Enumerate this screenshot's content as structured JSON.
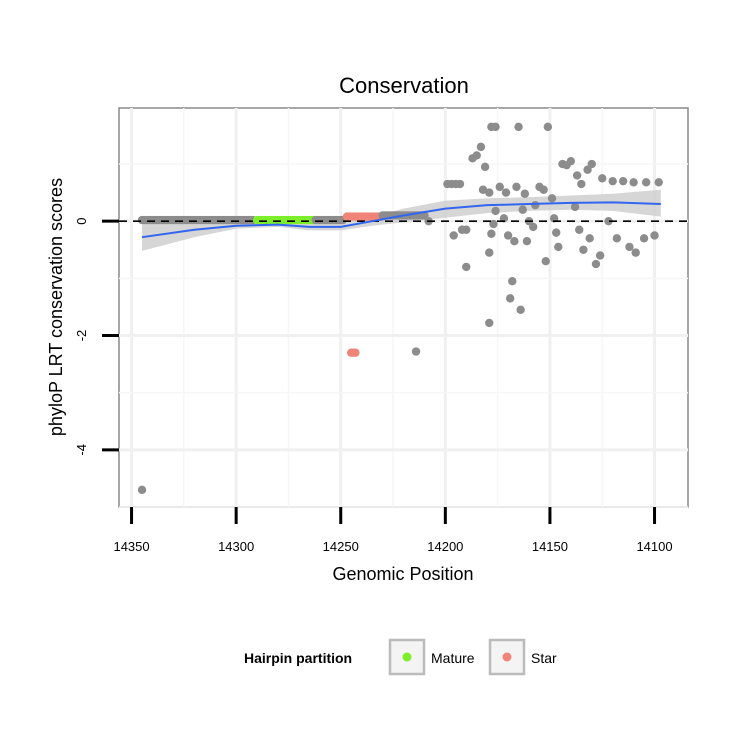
{
  "chart_data": {
    "type": "scatter",
    "title": "Conservation",
    "xlabel": "Genomic Position",
    "ylabel": "phyloP LRT conservation scores",
    "x_reversed": true,
    "xlim": [
      14356,
      14084
    ],
    "ylim": [
      -5.0,
      1.98
    ],
    "xticks": [
      14350,
      14300,
      14250,
      14200,
      14150,
      14100
    ],
    "yticks": [
      -4,
      -2,
      0
    ],
    "reference_line": {
      "y": 0,
      "style": "dashed"
    },
    "legend": {
      "title": "Hairpin partition",
      "position": "bottom",
      "entries": [
        {
          "label": "Mature",
          "color": "#7cee2a"
        },
        {
          "label": "Star",
          "color": "#f08478"
        }
      ]
    },
    "colors": {
      "other": "#8c8c8c",
      "mature": "#7cee2a",
      "star": "#f08478",
      "smooth": "#3366ee",
      "band": "#cfcfcf"
    },
    "series": [
      {
        "name": "Other",
        "x_range": [
          14345,
          14292
        ],
        "y": 0.02,
        "step": 1
      },
      {
        "name": "Mature",
        "x_range": [
          14290,
          14263
        ],
        "y": 0.02,
        "step": 1
      },
      {
        "name": "Other",
        "x_range": [
          14262,
          14249
        ],
        "y": 0.02,
        "step": 1
      },
      {
        "name": "Star",
        "x_range": [
          14247,
          14231
        ],
        "y": 0.08,
        "step": 1
      },
      {
        "name": "Other",
        "x_range": [
          14230,
          14210
        ],
        "y": 0.1,
        "step": 1
      },
      {
        "name": "Star",
        "points": [
          [
            14245,
            -2.3
          ],
          [
            14244,
            -2.3
          ],
          [
            14243,
            -2.3
          ]
        ]
      },
      {
        "name": "Other",
        "points": [
          [
            14345,
            -4.7
          ],
          [
            14214,
            -2.28
          ],
          [
            14208,
            0.0
          ],
          [
            14199,
            0.65
          ],
          [
            14197,
            0.65
          ],
          [
            14195,
            0.65
          ],
          [
            14193,
            0.65
          ],
          [
            14196,
            -0.25
          ],
          [
            14192,
            -0.15
          ],
          [
            14190,
            -0.15
          ],
          [
            14190,
            -0.8
          ],
          [
            14187,
            1.1
          ],
          [
            14185,
            1.15
          ],
          [
            14183,
            1.3
          ],
          [
            14181,
            0.95
          ],
          [
            14178,
            1.65
          ],
          [
            14176,
            1.65
          ],
          [
            14182,
            0.55
          ],
          [
            14179,
            0.5
          ],
          [
            14176,
            0.18
          ],
          [
            14177,
            -0.05
          ],
          [
            14178,
            -0.22
          ],
          [
            14179,
            -0.55
          ],
          [
            14179,
            -1.78
          ],
          [
            14174,
            0.6
          ],
          [
            14171,
            0.5
          ],
          [
            14172,
            0.05
          ],
          [
            14170,
            -0.25
          ],
          [
            14167,
            -0.35
          ],
          [
            14168,
            -1.05
          ],
          [
            14169,
            -1.35
          ],
          [
            14166,
            0.6
          ],
          [
            14162,
            0.48
          ],
          [
            14163,
            0.2
          ],
          [
            14160,
            0.0
          ],
          [
            14161,
            -0.35
          ],
          [
            14164,
            -1.55
          ],
          [
            14165,
            1.65
          ],
          [
            14158,
            -0.1
          ],
          [
            14157,
            0.28
          ],
          [
            14155,
            0.6
          ],
          [
            14153,
            0.55
          ],
          [
            14151,
            1.65
          ],
          [
            14149,
            0.4
          ],
          [
            14148,
            0.05
          ],
          [
            14147,
            -0.2
          ],
          [
            14146,
            -0.45
          ],
          [
            14152,
            -0.7
          ],
          [
            14144,
            1.0
          ],
          [
            14142,
            0.98
          ],
          [
            14140,
            1.05
          ],
          [
            14137,
            0.8
          ],
          [
            14135,
            0.65
          ],
          [
            14132,
            0.9
          ],
          [
            14130,
            1.0
          ],
          [
            14138,
            0.25
          ],
          [
            14136,
            -0.15
          ],
          [
            14134,
            -0.5
          ],
          [
            14131,
            -0.3
          ],
          [
            14128,
            -0.75
          ],
          [
            14126,
            -0.6
          ],
          [
            14125,
            0.75
          ],
          [
            14120,
            0.7
          ],
          [
            14115,
            0.7
          ],
          [
            14110,
            0.68
          ],
          [
            14104,
            0.68
          ],
          [
            14098,
            0.68
          ],
          [
            14122,
            0.0
          ],
          [
            14118,
            -0.3
          ],
          [
            14112,
            -0.45
          ],
          [
            14105,
            -0.3
          ],
          [
            14100,
            -0.25
          ],
          [
            14109,
            -0.55
          ]
        ]
      }
    ],
    "smooth": {
      "x": [
        14345,
        14320,
        14300,
        14280,
        14265,
        14250,
        14235,
        14220,
        14200,
        14180,
        14160,
        14140,
        14120,
        14097
      ],
      "y": [
        -0.28,
        -0.15,
        -0.08,
        -0.06,
        -0.1,
        -0.1,
        0.0,
        0.1,
        0.22,
        0.28,
        0.3,
        0.32,
        0.33,
        0.3
      ],
      "upper": [
        -0.05,
        -0.05,
        -0.02,
        0.0,
        -0.04,
        -0.04,
        0.08,
        0.22,
        0.36,
        0.4,
        0.42,
        0.45,
        0.48,
        0.55
      ],
      "lower": [
        -0.52,
        -0.28,
        -0.13,
        -0.1,
        -0.16,
        -0.16,
        -0.08,
        -0.02,
        0.06,
        0.14,
        0.18,
        0.2,
        0.18,
        0.08
      ]
    }
  }
}
